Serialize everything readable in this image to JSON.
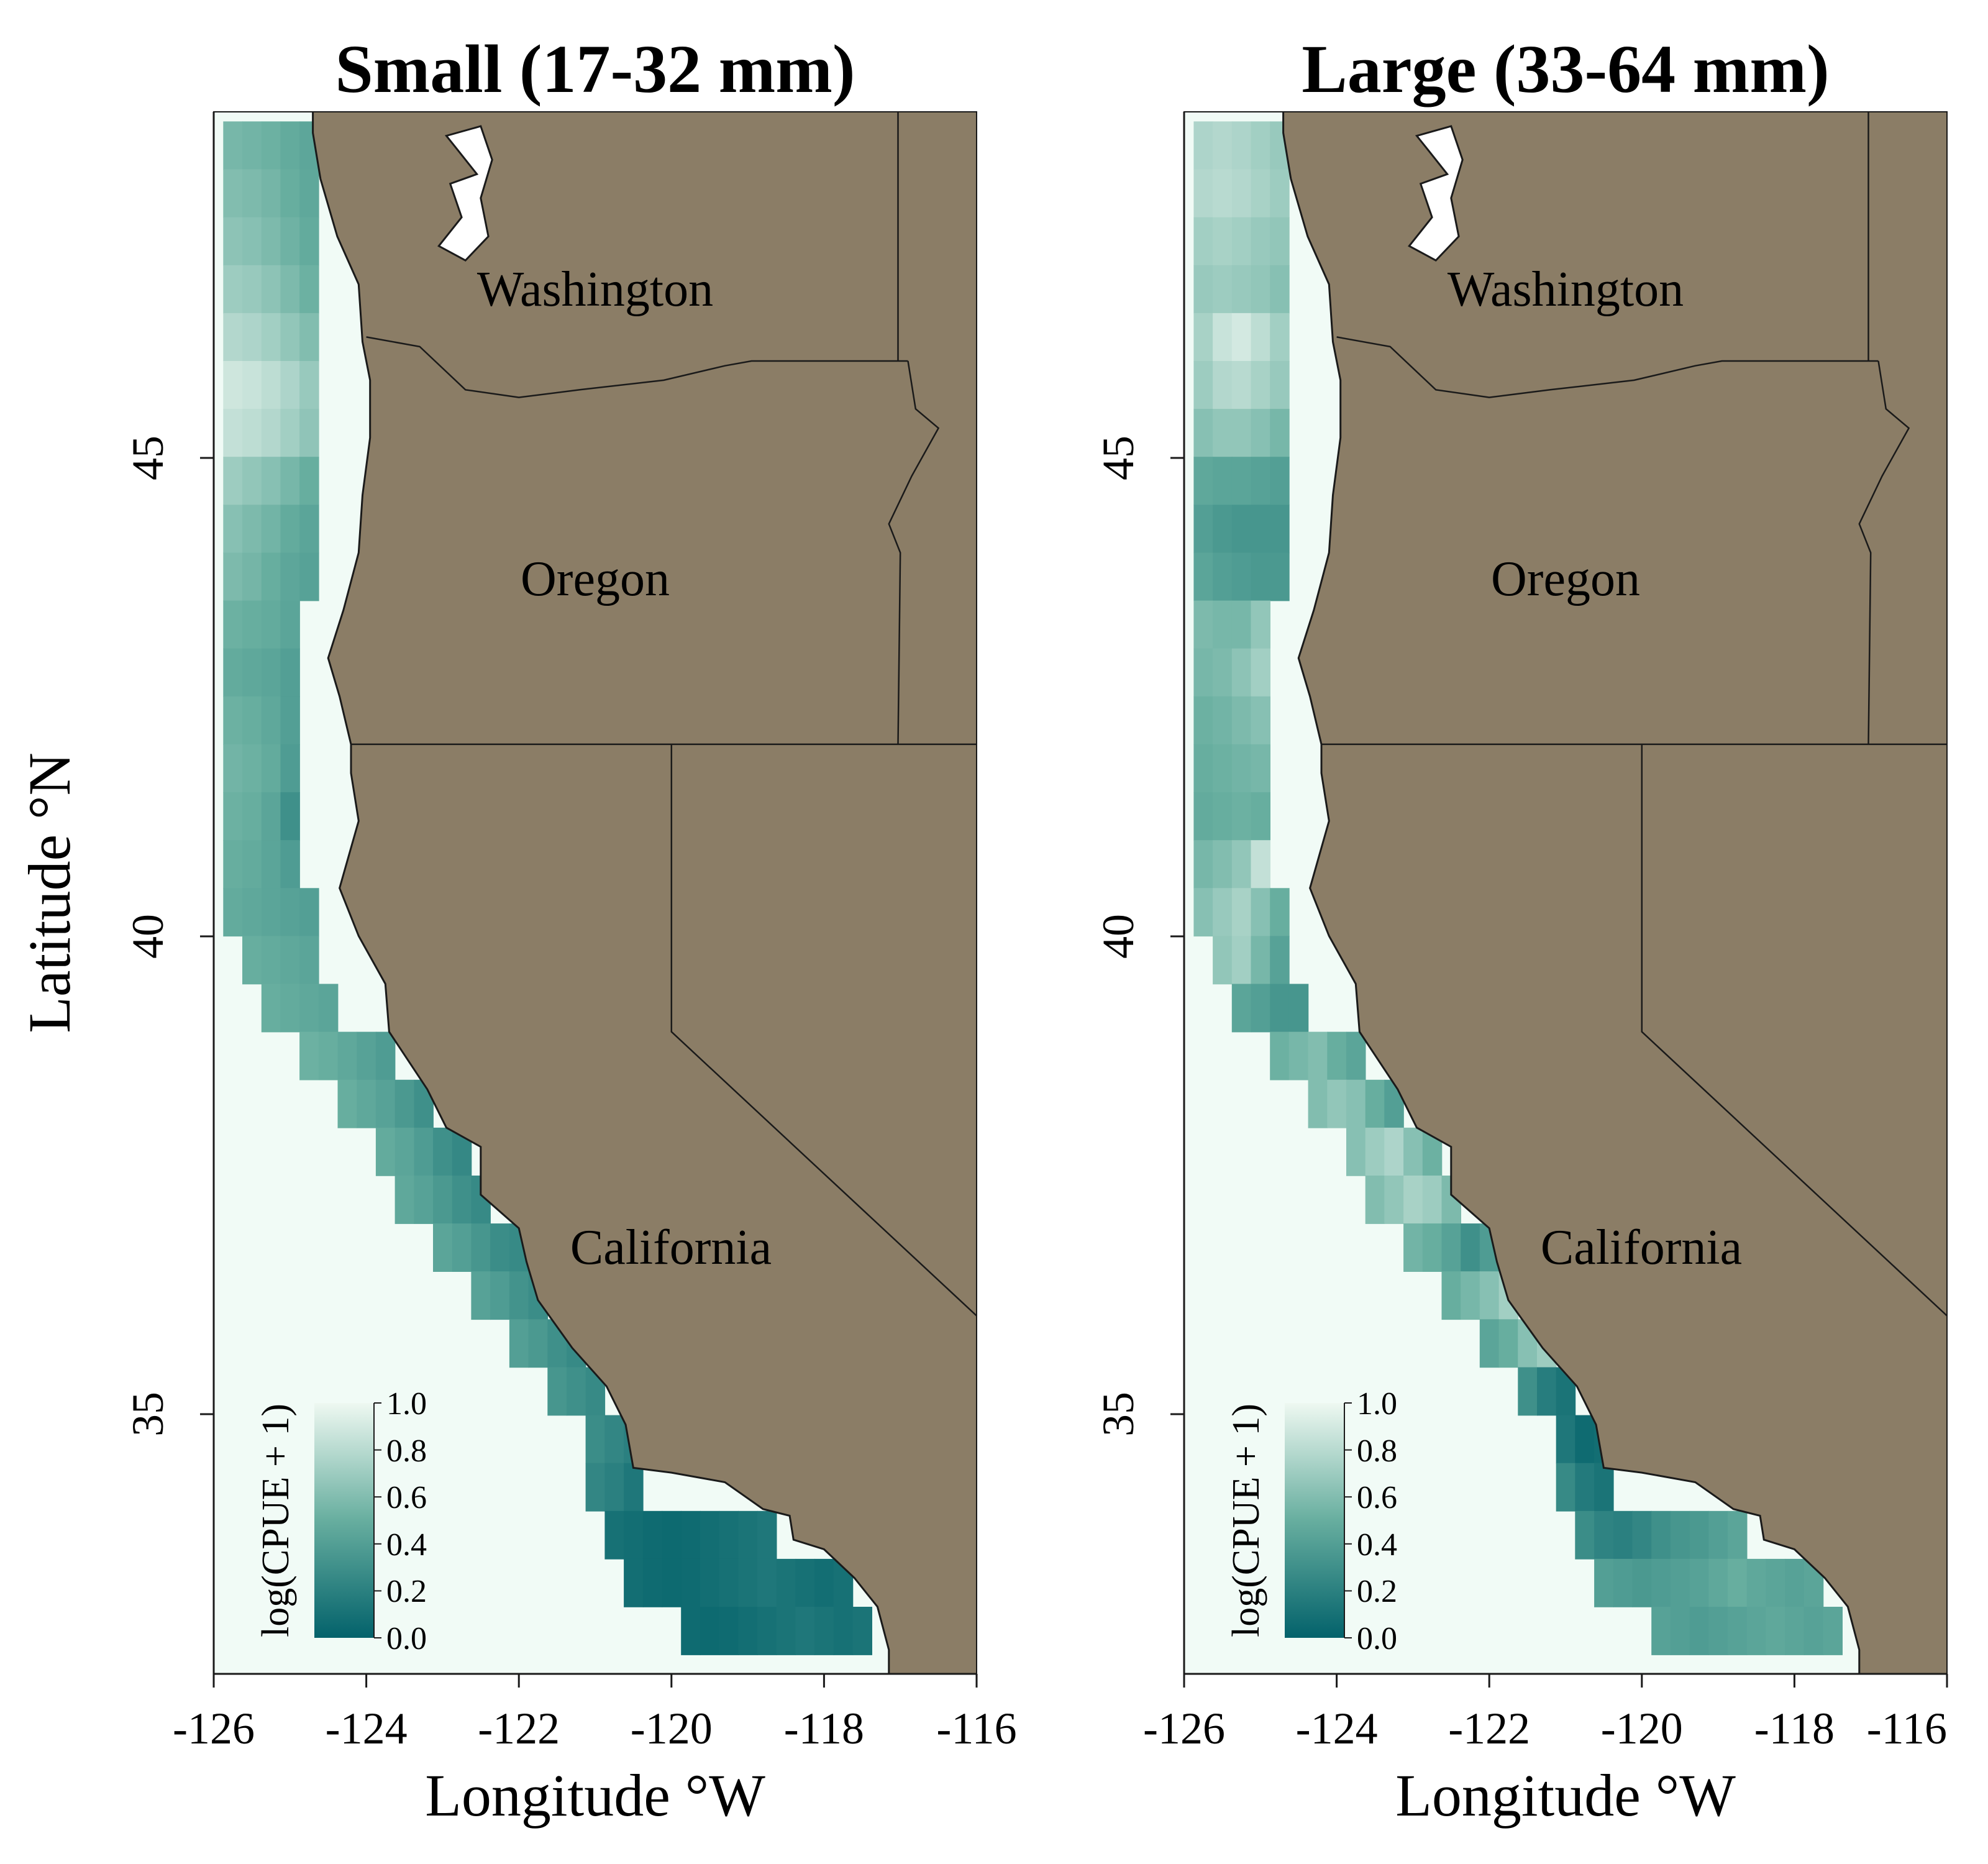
{
  "figure": {
    "ylabel": "Latitude °N",
    "colors": {
      "sea": "#f1fbf6",
      "land": "#8b7d66",
      "border": "#1a1a1a",
      "scale_low": "#03626b",
      "scale_mid": "#67ae9f",
      "scale_high": "#eef8f1"
    }
  },
  "panels": [
    {
      "title": "Small (17-32 mm)",
      "xlabel": "Longitude °W",
      "x_ticks": [
        "-126",
        "-124",
        "-122",
        "-120",
        "-118",
        "-116"
      ],
      "y_ticks": [
        "45",
        "40",
        "35"
      ],
      "states": [
        "Washington",
        "Oregon",
        "California"
      ],
      "legend": {
        "title": "log(CPUE + 1)",
        "ticks": [
          "1.0",
          "0.8",
          "0.6",
          "0.4",
          "0.2",
          "0.0"
        ]
      }
    },
    {
      "title": "Large (33-64 mm)",
      "xlabel": "Longitude °W",
      "x_ticks": [
        "-126",
        "-124",
        "-122",
        "-120",
        "-118",
        "-116"
      ],
      "y_ticks": [
        "45",
        "40",
        "35"
      ],
      "states": [
        "Washington",
        "Oregon",
        "California"
      ],
      "legend": {
        "title": "log(CPUE + 1)",
        "ticks": [
          "1.0",
          "0.8",
          "0.6",
          "0.4",
          "0.2",
          "0.0"
        ]
      }
    }
  ],
  "map_data": {
    "lon_range": [
      -126,
      -116
    ],
    "lat_range": [
      32.3,
      48.6
    ],
    "value_range": [
      0.0,
      1.0
    ],
    "coastline": [
      [
        -124.7,
        48.38
      ],
      [
        -124.6,
        47.9
      ],
      [
        -124.38,
        47.3
      ],
      [
        -124.1,
        46.8
      ],
      [
        -124.05,
        46.2
      ],
      [
        -123.95,
        45.8
      ],
      [
        -123.95,
        45.2
      ],
      [
        -124.05,
        44.6
      ],
      [
        -124.1,
        44.0
      ],
      [
        -124.3,
        43.4
      ],
      [
        -124.5,
        42.9
      ],
      [
        -124.35,
        42.5
      ],
      [
        -124.2,
        42.0
      ],
      [
        -124.2,
        41.7
      ],
      [
        -124.1,
        41.2
      ],
      [
        -124.35,
        40.5
      ],
      [
        -124.1,
        40.0
      ],
      [
        -123.75,
        39.5
      ],
      [
        -123.7,
        39.0
      ],
      [
        -123.2,
        38.4
      ],
      [
        -122.95,
        38.0
      ],
      [
        -122.5,
        37.8
      ],
      [
        -122.5,
        37.3
      ],
      [
        -122.0,
        36.95
      ],
      [
        -121.9,
        36.6
      ],
      [
        -121.75,
        36.2
      ],
      [
        -121.3,
        35.7
      ],
      [
        -120.85,
        35.3
      ],
      [
        -120.6,
        34.9
      ],
      [
        -120.5,
        34.45
      ],
      [
        -120.0,
        34.4
      ],
      [
        -119.3,
        34.3
      ],
      [
        -118.8,
        34.02
      ],
      [
        -118.45,
        33.95
      ],
      [
        -118.4,
        33.7
      ],
      [
        -118.0,
        33.6
      ],
      [
        -117.6,
        33.3
      ],
      [
        -117.3,
        33.0
      ],
      [
        -117.15,
        32.55
      ]
    ],
    "state_lines": [
      {
        "name": "wa-or",
        "points": [
          [
            -124.0,
            46.25
          ],
          [
            -123.3,
            46.15
          ],
          [
            -122.7,
            45.7
          ],
          [
            -122.0,
            45.62
          ],
          [
            -121.2,
            45.7
          ],
          [
            -120.1,
            45.8
          ],
          [
            -119.3,
            45.95
          ],
          [
            -118.95,
            46.0
          ],
          [
            -116.9,
            46.0
          ]
        ]
      },
      {
        "name": "or-east",
        "points": [
          [
            -116.9,
            46.0
          ],
          [
            -116.8,
            45.5
          ],
          [
            -116.5,
            45.3
          ],
          [
            -116.85,
            44.8
          ],
          [
            -117.15,
            44.3
          ],
          [
            -117.0,
            44.0
          ],
          [
            -117.03,
            42.0
          ]
        ]
      },
      {
        "name": "wa-east",
        "points": [
          [
            -117.03,
            46.0
          ],
          [
            -117.03,
            49.0
          ]
        ]
      },
      {
        "name": "or-ca",
        "points": [
          [
            -124.2,
            42.0
          ],
          [
            -117.03,
            42.0
          ],
          [
            -116.0,
            42.0
          ]
        ]
      },
      {
        "name": "nv-west",
        "points": [
          [
            -120.0,
            42.0
          ],
          [
            -120.0,
            39.0
          ],
          [
            -114.6,
            35.0
          ]
        ]
      }
    ],
    "puget_sound": [
      [
        -122.95,
        48.35
      ],
      [
        -122.5,
        48.45
      ],
      [
        -122.35,
        48.1
      ],
      [
        -122.5,
        47.7
      ],
      [
        -122.4,
        47.3
      ],
      [
        -122.7,
        47.05
      ],
      [
        -123.05,
        47.2
      ],
      [
        -122.75,
        47.5
      ],
      [
        -122.9,
        47.85
      ],
      [
        -122.55,
        47.95
      ],
      [
        -122.8,
        48.2
      ]
    ],
    "panels": [
      {
        "rows": [
          {
            "lat": 48.25,
            "lon0": -125.75,
            "values": [
              0.56,
              0.54,
              0.52,
              0.48,
              0.45
            ]
          },
          {
            "lat": 47.75,
            "lon0": -125.75,
            "values": [
              0.6,
              0.58,
              0.55,
              0.5,
              0.46
            ]
          },
          {
            "lat": 47.25,
            "lon0": -125.75,
            "values": [
              0.64,
              0.62,
              0.58,
              0.53,
              0.48
            ]
          },
          {
            "lat": 46.75,
            "lon0": -125.75,
            "values": [
              0.7,
              0.68,
              0.64,
              0.58,
              0.52
            ]
          },
          {
            "lat": 46.25,
            "lon0": -125.75,
            "values": [
              0.78,
              0.76,
              0.72,
              0.66,
              0.6
            ]
          },
          {
            "lat": 45.75,
            "lon0": -125.75,
            "values": [
              0.88,
              0.86,
              0.82,
              0.76,
              0.68
            ]
          },
          {
            "lat": 45.25,
            "lon0": -125.75,
            "values": [
              0.84,
              0.82,
              0.78,
              0.72,
              0.65
            ]
          },
          {
            "lat": 44.75,
            "lon0": -125.75,
            "values": [
              0.7,
              0.66,
              0.62,
              0.56,
              0.5
            ]
          },
          {
            "lat": 44.25,
            "lon0": -125.75,
            "values": [
              0.62,
              0.58,
              0.54,
              0.48,
              0.44
            ]
          },
          {
            "lat": 43.75,
            "lon0": -125.75,
            "values": [
              0.58,
              0.55,
              0.5,
              0.45,
              0.42
            ]
          },
          {
            "lat": 43.25,
            "lon0": -125.75,
            "values": [
              0.52,
              0.5,
              0.48,
              0.44
            ]
          },
          {
            "lat": 42.75,
            "lon0": -125.75,
            "values": [
              0.48,
              0.46,
              0.44,
              0.4
            ]
          },
          {
            "lat": 42.25,
            "lon0": -125.75,
            "values": [
              0.52,
              0.5,
              0.46,
              0.4
            ]
          },
          {
            "lat": 41.75,
            "lon0": -125.75,
            "values": [
              0.54,
              0.52,
              0.48,
              0.38
            ]
          },
          {
            "lat": 41.25,
            "lon0": -125.75,
            "values": [
              0.52,
              0.5,
              0.44,
              0.3
            ]
          },
          {
            "lat": 40.75,
            "lon0": -125.75,
            "values": [
              0.5,
              0.48,
              0.44,
              0.38
            ]
          },
          {
            "lat": 40.25,
            "lon0": -125.75,
            "values": [
              0.48,
              0.46,
              0.44,
              0.42,
              0.4
            ]
          },
          {
            "lat": 39.75,
            "lon0": -125.5,
            "values": [
              0.5,
              0.48,
              0.46,
              0.44
            ]
          },
          {
            "lat": 39.25,
            "lon0": -125.25,
            "values": [
              0.5,
              0.48,
              0.46,
              0.44
            ]
          },
          {
            "lat": 38.75,
            "lon0": -124.75,
            "values": [
              0.52,
              0.5,
              0.46,
              0.42,
              0.38
            ]
          },
          {
            "lat": 38.25,
            "lon0": -124.25,
            "values": [
              0.5,
              0.46,
              0.42,
              0.36,
              0.3
            ]
          },
          {
            "lat": 37.75,
            "lon0": -123.75,
            "values": [
              0.48,
              0.44,
              0.38,
              0.3,
              0.25
            ]
          },
          {
            "lat": 37.25,
            "lon0": -123.5,
            "values": [
              0.46,
              0.42,
              0.36,
              0.3,
              0.26
            ]
          },
          {
            "lat": 36.75,
            "lon0": -123.0,
            "values": [
              0.44,
              0.4,
              0.34,
              0.28,
              0.26
            ]
          },
          {
            "lat": 36.25,
            "lon0": -122.5,
            "values": [
              0.42,
              0.38,
              0.32,
              0.28
            ]
          },
          {
            "lat": 35.75,
            "lon0": -122.0,
            "values": [
              0.4,
              0.36,
              0.3,
              0.26
            ]
          },
          {
            "lat": 35.25,
            "lon0": -121.5,
            "values": [
              0.34,
              0.3,
              0.26
            ]
          },
          {
            "lat": 34.75,
            "lon0": -121.0,
            "values": [
              0.28,
              0.24,
              0.2
            ]
          },
          {
            "lat": 34.25,
            "lon0": -121.0,
            "values": [
              0.24,
              0.2,
              0.14
            ]
          },
          {
            "lat": 33.75,
            "lon0": -120.75,
            "values": [
              0.1,
              0.08,
              0.06,
              0.05,
              0.06,
              0.08,
              0.1,
              0.12,
              0.14
            ]
          },
          {
            "lat": 33.25,
            "lon0": -120.5,
            "values": [
              0.08,
              0.06,
              0.05,
              0.06,
              0.08,
              0.1,
              0.12,
              0.14,
              0.12,
              0.1,
              0.08,
              0.1
            ]
          },
          {
            "lat": 32.75,
            "lon0": -119.75,
            "values": [
              0.06,
              0.05,
              0.06,
              0.08,
              0.1,
              0.12,
              0.14,
              0.12,
              0.1,
              0.12
            ]
          }
        ]
      },
      {
        "rows": [
          {
            "lat": 48.25,
            "lon0": -125.75,
            "values": [
              0.76,
              0.78,
              0.76,
              0.72,
              0.68
            ]
          },
          {
            "lat": 47.75,
            "lon0": -125.75,
            "values": [
              0.78,
              0.8,
              0.78,
              0.74,
              0.7
            ]
          },
          {
            "lat": 47.25,
            "lon0": -125.75,
            "values": [
              0.72,
              0.74,
              0.72,
              0.68,
              0.66
            ]
          },
          {
            "lat": 46.75,
            "lon0": -125.75,
            "values": [
              0.68,
              0.7,
              0.68,
              0.66,
              0.62
            ]
          },
          {
            "lat": 46.25,
            "lon0": -125.75,
            "values": [
              0.74,
              0.86,
              0.9,
              0.82,
              0.72
            ]
          },
          {
            "lat": 45.75,
            "lon0": -125.75,
            "values": [
              0.7,
              0.78,
              0.8,
              0.74,
              0.68
            ]
          },
          {
            "lat": 45.25,
            "lon0": -125.75,
            "values": [
              0.62,
              0.66,
              0.66,
              0.62,
              0.56
            ]
          },
          {
            "lat": 44.75,
            "lon0": -125.75,
            "values": [
              0.46,
              0.44,
              0.44,
              0.42,
              0.4
            ]
          },
          {
            "lat": 44.25,
            "lon0": -125.75,
            "values": [
              0.4,
              0.36,
              0.34,
              0.34,
              0.34
            ]
          },
          {
            "lat": 43.75,
            "lon0": -125.75,
            "values": [
              0.44,
              0.4,
              0.38,
              0.36,
              0.36
            ]
          },
          {
            "lat": 43.25,
            "lon0": -125.75,
            "values": [
              0.58,
              0.56,
              0.56,
              0.66
            ]
          },
          {
            "lat": 42.75,
            "lon0": -125.75,
            "values": [
              0.56,
              0.58,
              0.64,
              0.72
            ]
          },
          {
            "lat": 42.25,
            "lon0": -125.75,
            "values": [
              0.52,
              0.54,
              0.58,
              0.62
            ]
          },
          {
            "lat": 41.75,
            "lon0": -125.75,
            "values": [
              0.5,
              0.52,
              0.54,
              0.56
            ]
          },
          {
            "lat": 41.25,
            "lon0": -125.75,
            "values": [
              0.48,
              0.5,
              0.52,
              0.5
            ]
          },
          {
            "lat": 40.75,
            "lon0": -125.75,
            "values": [
              0.56,
              0.6,
              0.66,
              0.84
            ]
          },
          {
            "lat": 40.25,
            "lon0": -125.75,
            "values": [
              0.62,
              0.68,
              0.74,
              0.62,
              0.5
            ]
          },
          {
            "lat": 39.75,
            "lon0": -125.5,
            "values": [
              0.66,
              0.72,
              0.56,
              0.42
            ]
          },
          {
            "lat": 39.25,
            "lon0": -125.25,
            "values": [
              0.44,
              0.4,
              0.34,
              0.34
            ]
          },
          {
            "lat": 38.75,
            "lon0": -124.75,
            "values": [
              0.52,
              0.56,
              0.6,
              0.5,
              0.44
            ]
          },
          {
            "lat": 38.25,
            "lon0": -124.25,
            "values": [
              0.6,
              0.66,
              0.62,
              0.5,
              0.4
            ]
          },
          {
            "lat": 37.75,
            "lon0": -123.75,
            "values": [
              0.62,
              0.7,
              0.76,
              0.62,
              0.52
            ]
          },
          {
            "lat": 37.25,
            "lon0": -123.5,
            "values": [
              0.6,
              0.66,
              0.74,
              0.7,
              0.58
            ]
          },
          {
            "lat": 36.75,
            "lon0": -123.0,
            "values": [
              0.54,
              0.5,
              0.42,
              0.3,
              0.38
            ]
          },
          {
            "lat": 36.25,
            "lon0": -122.5,
            "values": [
              0.5,
              0.56,
              0.62,
              0.72
            ]
          },
          {
            "lat": 35.75,
            "lon0": -122.0,
            "values": [
              0.44,
              0.5,
              0.62,
              0.7
            ]
          },
          {
            "lat": 35.25,
            "lon0": -121.5,
            "values": [
              0.3,
              0.18,
              0.12
            ]
          },
          {
            "lat": 34.75,
            "lon0": -121.0,
            "values": [
              0.14,
              0.06,
              0.08
            ]
          },
          {
            "lat": 34.25,
            "lon0": -121.0,
            "values": [
              0.26,
              0.16,
              0.12
            ]
          },
          {
            "lat": 33.75,
            "lon0": -120.75,
            "values": [
              0.28,
              0.22,
              0.2,
              0.24,
              0.3,
              0.34,
              0.36,
              0.4,
              0.44
            ]
          },
          {
            "lat": 33.25,
            "lon0": -120.5,
            "values": [
              0.4,
              0.38,
              0.36,
              0.38,
              0.4,
              0.42,
              0.46,
              0.5,
              0.46,
              0.44,
              0.42,
              0.44
            ]
          },
          {
            "lat": 32.75,
            "lon0": -119.75,
            "values": [
              0.42,
              0.4,
              0.38,
              0.4,
              0.42,
              0.44,
              0.46,
              0.44,
              0.42,
              0.44
            ]
          }
        ]
      }
    ]
  }
}
